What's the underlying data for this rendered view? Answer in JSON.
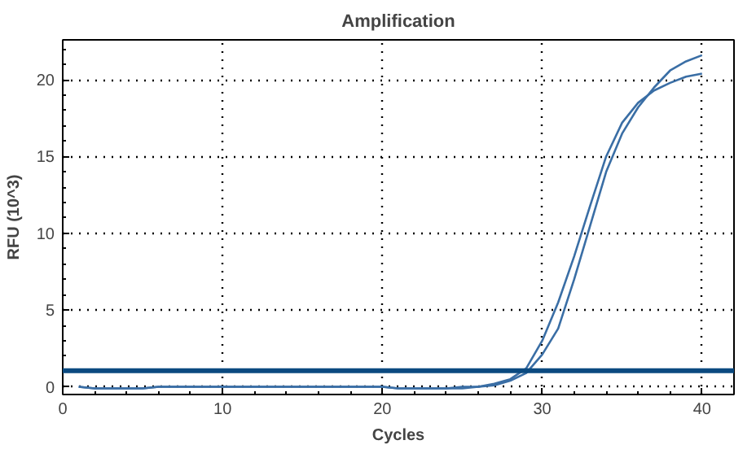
{
  "chart_data": {
    "type": "line",
    "title": "Amplification",
    "xlabel": "Cycles",
    "ylabel": "RFU (10^3)",
    "x": [
      1,
      2,
      3,
      4,
      5,
      6,
      7,
      8,
      9,
      10,
      11,
      12,
      13,
      14,
      15,
      16,
      17,
      18,
      19,
      20,
      21,
      22,
      23,
      24,
      25,
      26,
      27,
      28,
      29,
      30,
      31,
      32,
      33,
      34,
      35,
      36,
      37,
      38,
      39,
      40
    ],
    "series": [
      {
        "color": "#3a6ea5",
        "values": [
          0,
          -0.1,
          -0.1,
          -0.1,
          -0.1,
          0,
          0,
          0,
          0,
          0,
          0,
          0,
          0,
          0,
          0,
          0,
          0,
          0,
          0,
          0,
          -0.1,
          -0.1,
          -0.1,
          -0.1,
          0,
          0,
          0.2,
          0.5,
          1.2,
          3.0,
          5.5,
          8.5,
          11.8,
          15.0,
          17.2,
          18.5,
          19.3,
          19.8,
          20.2,
          20.4
        ]
      },
      {
        "color": "#3a6ea5",
        "values": [
          0,
          -0.1,
          -0.1,
          -0.1,
          -0.1,
          0,
          0,
          0,
          0,
          0,
          0,
          0,
          0,
          0,
          0,
          0,
          0,
          0,
          0,
          0,
          -0.1,
          -0.1,
          -0.1,
          -0.1,
          -0.1,
          0,
          0.1,
          0.4,
          0.9,
          2.1,
          3.8,
          7.0,
          10.5,
          14.0,
          16.5,
          18.2,
          19.5,
          20.6,
          21.2,
          21.6
        ]
      }
    ],
    "ref_lines": [
      {
        "axis": "y",
        "value": 1.05,
        "color": "#0b4a80"
      }
    ],
    "xlim": [
      0,
      42
    ],
    "ylim": [
      -0.5,
      22.6
    ],
    "xticks": [
      0,
      10,
      20,
      30,
      40
    ],
    "yticks": [
      0,
      5,
      10,
      15,
      20
    ],
    "grid": true,
    "line_style": "solid",
    "marker": "none"
  }
}
